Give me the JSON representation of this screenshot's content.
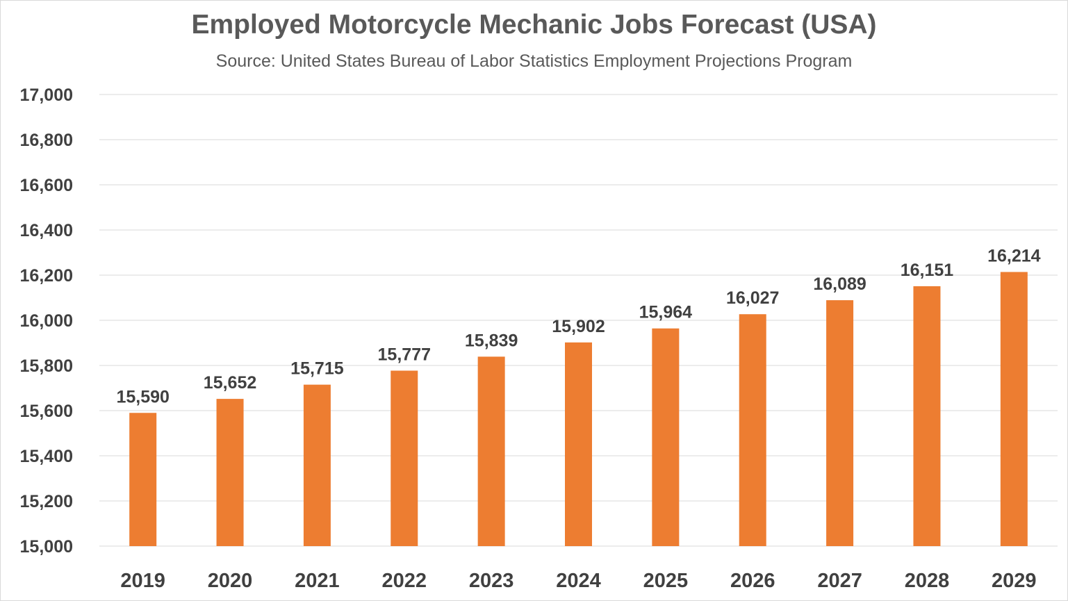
{
  "chart_data": {
    "type": "bar",
    "title": "Employed Motorcycle Mechanic Jobs Forecast (USA)",
    "subtitle": "Source: United States Bureau of Labor Statistics Employment Projections Program",
    "xlabel": "",
    "ylabel": "",
    "categories": [
      "2019",
      "2020",
      "2021",
      "2022",
      "2023",
      "2024",
      "2025",
      "2026",
      "2027",
      "2028",
      "2029"
    ],
    "values": [
      15590,
      15652,
      15715,
      15777,
      15839,
      15902,
      15964,
      16027,
      16089,
      16151,
      16214
    ],
    "data_labels": [
      "15,590",
      "15,652",
      "15,715",
      "15,777",
      "15,839",
      "15,902",
      "15,964",
      "16,027",
      "16,089",
      "16,151",
      "16,214"
    ],
    "ylim": [
      15000,
      17000
    ],
    "y_ticks": [
      15000,
      15200,
      15400,
      15600,
      15800,
      16000,
      16200,
      16400,
      16600,
      16800,
      17000
    ],
    "y_tick_labels": [
      "15,000",
      "15,200",
      "15,400",
      "15,600",
      "15,800",
      "16,000",
      "16,200",
      "16,400",
      "16,600",
      "16,800",
      "17,000"
    ],
    "grid": true,
    "legend": "none",
    "bar_color": "#ED7D31",
    "grid_color": "#D9D9D9",
    "text_color": "#404040"
  }
}
